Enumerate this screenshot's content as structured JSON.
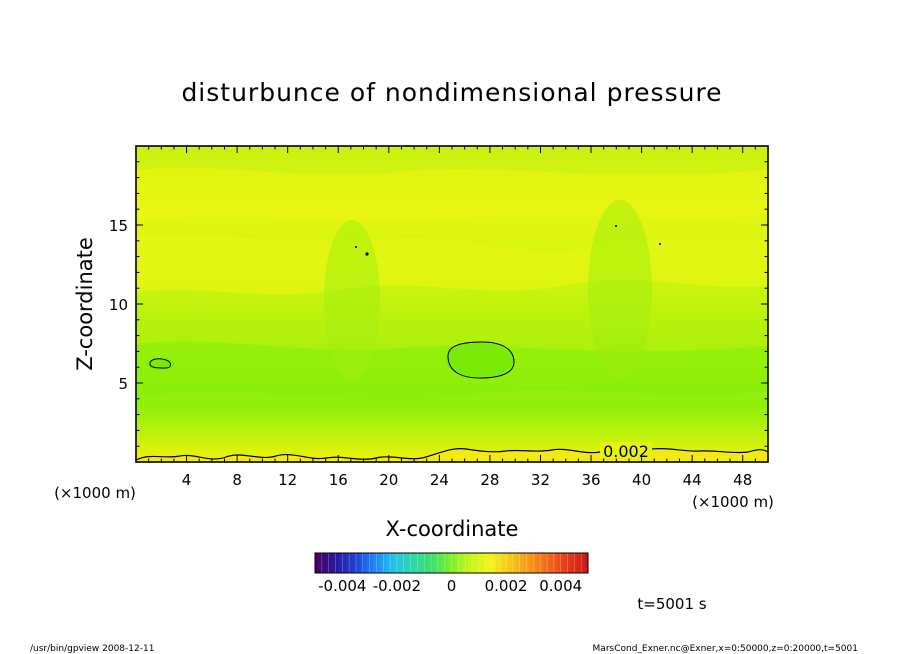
{
  "chart_data": {
    "type": "heatmap",
    "title": "disturbunce of nondimensional pressure",
    "xlabel": "X-coordinate",
    "ylabel": "Z-coordinate",
    "x_unit_left": "(×1000 m)",
    "x_unit_right": "(×1000 m)",
    "xlim": [
      0,
      50
    ],
    "ylim": [
      0,
      20
    ],
    "x_ticks": [
      "4",
      "8",
      "12",
      "16",
      "20",
      "24",
      "28",
      "32",
      "36",
      "40",
      "44",
      "48"
    ],
    "y_ticks": [
      "5",
      "10",
      "15"
    ],
    "contour_label": "0.002",
    "colorbar": {
      "range": [
        -0.005,
        0.005
      ],
      "ticks": [
        "-0.004",
        "-0.002",
        "0",
        "0.002",
        "0.004"
      ],
      "colors": [
        "#4a0066",
        "#2a1aa0",
        "#1f3fd0",
        "#1f86ff",
        "#27c2e6",
        "#2ad9a8",
        "#3fe06a",
        "#7ef02a",
        "#c8f51a",
        "#f3f51a",
        "#f7c81a",
        "#f79a1a",
        "#f26a1a",
        "#e63a1a",
        "#c81a1a"
      ]
    },
    "field_colors": {
      "bottom_high": "#e8f20f",
      "low_band": "#86f00a",
      "mid": "#b5f20c",
      "upper": "#d2f511",
      "top": "#eef412"
    },
    "time_label": "t=5001 s",
    "footer_left": "/usr/bin/gpview   2008-12-11",
    "footer_right": "MarsCond_Exner.nc@Exner,x=0:50000,z=0:20000,t=5001"
  }
}
